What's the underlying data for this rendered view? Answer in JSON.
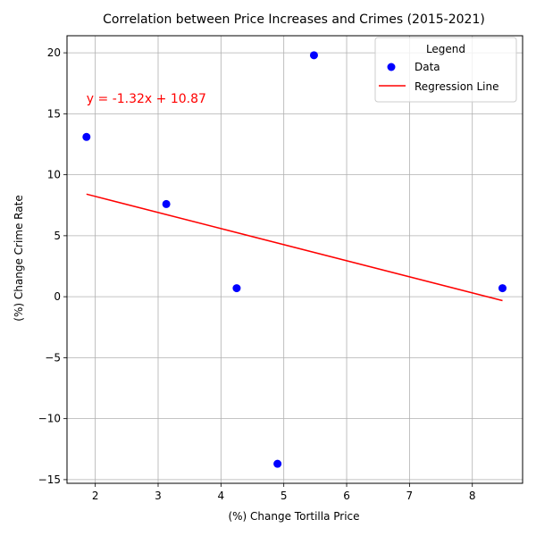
{
  "chart_data": {
    "type": "scatter",
    "title": "Correlation between Price Increases and Crimes (2015-2021)",
    "xlabel": "(%) Change Tortilla Price",
    "ylabel": "(%) Change Crime Rate",
    "xlim": [
      1.55,
      8.8
    ],
    "ylim": [
      -15.3,
      21.4
    ],
    "xticks": [
      2,
      3,
      4,
      5,
      6,
      7,
      8
    ],
    "yticks": [
      -15,
      -10,
      -5,
      0,
      5,
      10,
      15,
      20
    ],
    "xtick_labels": [
      "2",
      "3",
      "4",
      "5",
      "6",
      "7",
      "8"
    ],
    "ytick_labels": [
      "−15",
      "−10",
      "−5",
      "0",
      "5",
      "10",
      "15",
      "20"
    ],
    "grid": true,
    "series": [
      {
        "name": "Data",
        "kind": "scatter",
        "color": "#0000ff",
        "points": [
          {
            "x": 1.86,
            "y": 13.1
          },
          {
            "x": 3.13,
            "y": 7.6
          },
          {
            "x": 4.25,
            "y": 0.7
          },
          {
            "x": 4.9,
            "y": -13.7
          },
          {
            "x": 5.48,
            "y": 19.8
          },
          {
            "x": 8.48,
            "y": 0.7
          }
        ]
      },
      {
        "name": "Regression Line",
        "kind": "line",
        "color": "#ff0000",
        "points": [
          {
            "x": 1.86,
            "y": 8.41
          },
          {
            "x": 8.48,
            "y": -0.32
          }
        ]
      }
    ],
    "annotation": {
      "text": "y = -1.32x + 10.87",
      "x": 1.86,
      "y": 15.9,
      "color": "#ff0000"
    },
    "legend": {
      "title": "Legend",
      "placement": "top-right",
      "entries": [
        "Data",
        "Regression Line"
      ]
    }
  }
}
